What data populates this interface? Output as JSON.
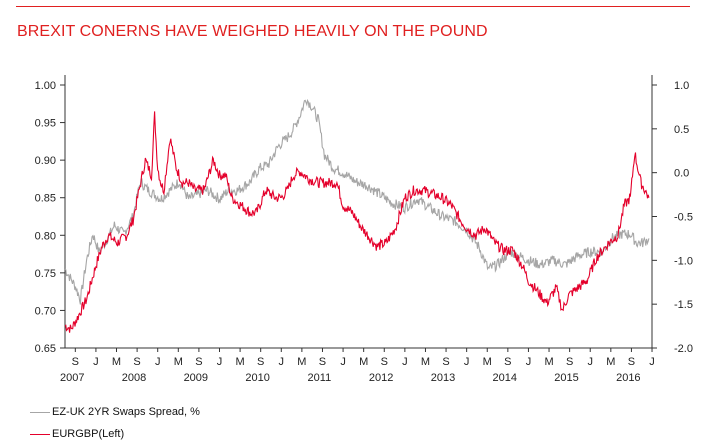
{
  "title": "BREXIT CONERNS HAVE WEIGHED HEAVILY ON THE POUND",
  "colors": {
    "accent": "#e02020",
    "series_grey": "#a6a6a6",
    "series_red": "#e4002b"
  },
  "legend": [
    {
      "label": "EZ-UK 2YR Swaps Spread, %",
      "color": "#a6a6a6"
    },
    {
      "label": "EURGBP(Left)",
      "color": "#e4002b"
    }
  ],
  "chart_data": {
    "type": "line",
    "title": "BREXIT CONERNS HAVE WEIGHED HEAVILY ON THE POUND",
    "x_range": [
      2007.5,
      2017.0
    ],
    "y_left": {
      "min": 0.65,
      "max": 1.0,
      "ticks": [
        "0.65",
        "0.70",
        "0.75",
        "0.80",
        "0.85",
        "0.90",
        "0.95",
        "1.00"
      ]
    },
    "y_right": {
      "min": -2.0,
      "max": 1.0,
      "ticks": [
        "-2.0",
        "-1.5",
        "-1.0",
        "-0.5",
        "0.0",
        "0.5",
        "1.0"
      ]
    },
    "x_month_ticks": [
      "S",
      "J",
      "M",
      "S",
      "J",
      "M",
      "S",
      "J",
      "M",
      "S",
      "J",
      "M",
      "S",
      "J",
      "M",
      "S",
      "J",
      "M",
      "S",
      "J",
      "M",
      "S",
      "J",
      "M",
      "S",
      "J",
      "M",
      "S",
      "J"
    ],
    "x_year_labels": [
      "2007",
      "2008",
      "2009",
      "2010",
      "2011",
      "2012",
      "2013",
      "2014",
      "2015",
      "2016"
    ],
    "series": [
      {
        "name": "EZ-UK 2YR Swaps Spread, %",
        "axis": "right",
        "x": [
          2007.5,
          2007.67,
          2007.75,
          2007.85,
          2007.95,
          2008.05,
          2008.15,
          2008.3,
          2008.45,
          2008.6,
          2008.72,
          2008.78,
          2008.85,
          2008.95,
          2009.05,
          2009.2,
          2009.35,
          2009.5,
          2009.65,
          2009.8,
          2010.0,
          2010.15,
          2010.3,
          2010.5,
          2010.65,
          2010.8,
          2010.95,
          2011.1,
          2011.2,
          2011.3,
          2011.4,
          2011.5,
          2011.6,
          2011.7,
          2011.85,
          2012.0,
          2012.2,
          2012.4,
          2012.6,
          2012.8,
          2013.0,
          2013.2,
          2013.4,
          2013.6,
          2013.8,
          2014.0,
          2014.2,
          2014.35,
          2014.5,
          2014.7,
          2014.85,
          2015.0,
          2015.2,
          2015.4,
          2015.6,
          2015.8,
          2016.0,
          2016.2,
          2016.35,
          2016.5,
          2016.65,
          2016.75,
          2016.85,
          2016.95
        ],
        "y": [
          -1.1,
          -1.3,
          -1.45,
          -1.0,
          -0.7,
          -0.9,
          -0.8,
          -0.6,
          -0.7,
          -0.5,
          -0.1,
          -0.15,
          -0.2,
          -0.25,
          -0.3,
          -0.2,
          -0.1,
          -0.3,
          -0.25,
          -0.2,
          -0.3,
          -0.2,
          -0.2,
          -0.1,
          0.05,
          0.1,
          0.3,
          0.4,
          0.5,
          0.65,
          0.85,
          0.75,
          0.6,
          0.2,
          0.05,
          0.0,
          -0.1,
          -0.15,
          -0.25,
          -0.35,
          -0.4,
          -0.3,
          -0.4,
          -0.5,
          -0.55,
          -0.65,
          -0.85,
          -1.1,
          -1.05,
          -0.9,
          -0.95,
          -1.0,
          -1.05,
          -1.0,
          -1.05,
          -0.95,
          -0.9,
          -0.9,
          -0.75,
          -0.7,
          -0.7,
          -0.8,
          -0.8,
          -0.75
        ]
      },
      {
        "name": "EURGBP(Left)",
        "axis": "left",
        "x": [
          2007.5,
          2007.6,
          2007.7,
          2007.85,
          2008.0,
          2008.1,
          2008.2,
          2008.35,
          2008.5,
          2008.6,
          2008.7,
          2008.8,
          2008.9,
          2008.95,
          2009.0,
          2009.05,
          2009.1,
          2009.2,
          2009.3,
          2009.4,
          2009.5,
          2009.6,
          2009.75,
          2009.9,
          2010.0,
          2010.1,
          2010.2,
          2010.35,
          2010.5,
          2010.6,
          2010.75,
          2010.9,
          2011.0,
          2011.1,
          2011.2,
          2011.3,
          2011.45,
          2011.6,
          2011.75,
          2011.9,
          2012.0,
          2012.15,
          2012.3,
          2012.4,
          2012.55,
          2012.7,
          2012.85,
          2013.0,
          2013.15,
          2013.3,
          2013.45,
          2013.6,
          2013.75,
          2013.9,
          2014.0,
          2014.15,
          2014.3,
          2014.45,
          2014.6,
          2014.75,
          2014.9,
          2015.0,
          2015.1,
          2015.2,
          2015.3,
          2015.45,
          2015.55,
          2015.65,
          2015.8,
          2015.95,
          2016.1,
          2016.2,
          2016.3,
          2016.45,
          2016.55,
          2016.65,
          2016.72,
          2016.82,
          2016.95
        ],
        "y": [
          0.68,
          0.675,
          0.69,
          0.715,
          0.76,
          0.785,
          0.8,
          0.79,
          0.8,
          0.82,
          0.86,
          0.9,
          0.88,
          0.96,
          0.89,
          0.87,
          0.86,
          0.93,
          0.89,
          0.87,
          0.87,
          0.86,
          0.86,
          0.9,
          0.88,
          0.88,
          0.85,
          0.84,
          0.83,
          0.83,
          0.86,
          0.85,
          0.85,
          0.86,
          0.88,
          0.885,
          0.875,
          0.87,
          0.87,
          0.87,
          0.84,
          0.83,
          0.81,
          0.8,
          0.785,
          0.79,
          0.81,
          0.85,
          0.86,
          0.86,
          0.855,
          0.85,
          0.84,
          0.82,
          0.81,
          0.8,
          0.81,
          0.79,
          0.78,
          0.78,
          0.76,
          0.74,
          0.73,
          0.72,
          0.71,
          0.73,
          0.7,
          0.72,
          0.73,
          0.74,
          0.77,
          0.78,
          0.79,
          0.8,
          0.84,
          0.85,
          0.91,
          0.87,
          0.85
        ]
      }
    ]
  }
}
